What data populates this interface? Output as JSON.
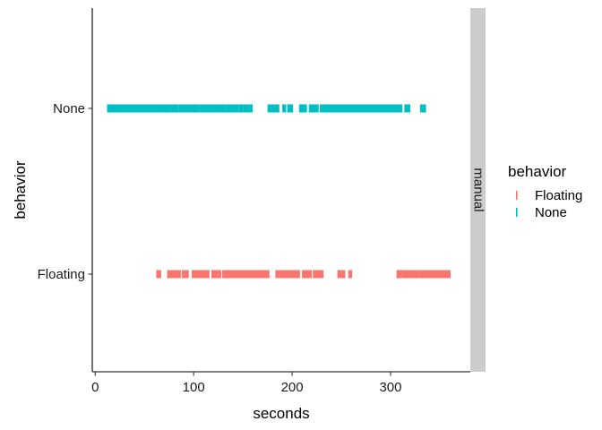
{
  "chart_data": {
    "type": "scatter",
    "title": "",
    "xlabel": "seconds",
    "ylabel": "behavior",
    "xlim": [
      -3,
      381
    ],
    "x_ticks": [
      0,
      100,
      200,
      300
    ],
    "categories": [
      "Floating",
      "None"
    ],
    "facet_label": "manual",
    "grid": false,
    "legend": {
      "title": "behavior",
      "position": "right",
      "entries": [
        "Floating",
        "None"
      ]
    },
    "colors": {
      "Floating": "#F8766D",
      "None": "#00BFC4",
      "strip": "#CCCCCC"
    },
    "series": [
      {
        "name": "Floating",
        "category": "Floating",
        "color": "#F8766D",
        "x": [
          64,
          65,
          75,
          76,
          80,
          81,
          84,
          85,
          90,
          91,
          92,
          93,
          100,
          101,
          102,
          103,
          104,
          105,
          106,
          108,
          110,
          112,
          114,
          120,
          122,
          124,
          126,
          131,
          133,
          135,
          137,
          139,
          141,
          143,
          145,
          147,
          149,
          151,
          153,
          155,
          157,
          159,
          161,
          163,
          165,
          167,
          169,
          171,
          173,
          175,
          185,
          189,
          190,
          192,
          194,
          196,
          198,
          200,
          202,
          204,
          206,
          212,
          215,
          216,
          218,
          223,
          226,
          228,
          230,
          248,
          252,
          259,
          308,
          309,
          313,
          314,
          316,
          317,
          319,
          321,
          323,
          325,
          327,
          331,
          333,
          335,
          337,
          339,
          341,
          343,
          345,
          347,
          349,
          351,
          353,
          355,
          357,
          359
        ]
      },
      {
        "name": "None",
        "category": "None",
        "color": "#00BFC4",
        "x": [
          14,
          16,
          18,
          20,
          22,
          24,
          26,
          28,
          30,
          32,
          34,
          36,
          38,
          40,
          42,
          44,
          46,
          48,
          50,
          52,
          54,
          56,
          58,
          60,
          62,
          64,
          66,
          68,
          70,
          73,
          75,
          79,
          81,
          83,
          87,
          89,
          92,
          94,
          96,
          98,
          100,
          102,
          104,
          108,
          110,
          112,
          114,
          116,
          118,
          120,
          122,
          124,
          126,
          128,
          130,
          134,
          136,
          140,
          142,
          144,
          148,
          152,
          154,
          158,
          177,
          179,
          181,
          183,
          185,
          192,
          197,
          199,
          209,
          211,
          213,
          219,
          221,
          223,
          225,
          230,
          232,
          234,
          236,
          238,
          240,
          242,
          244,
          246,
          248,
          250,
          252,
          254,
          256,
          258,
          260,
          262,
          264,
          266,
          268,
          270,
          272,
          274,
          276,
          278,
          280,
          282,
          284,
          286,
          288,
          290,
          292,
          294,
          296,
          298,
          300,
          302,
          304,
          306,
          308,
          310,
          316,
          318,
          332,
          334
        ]
      }
    ]
  }
}
